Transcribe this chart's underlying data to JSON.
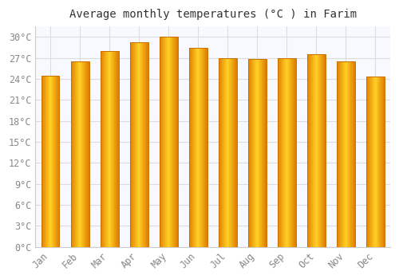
{
  "title": "Average monthly temperatures (°C ) in Farim",
  "months": [
    "Jan",
    "Feb",
    "Mar",
    "Apr",
    "May",
    "Jun",
    "Jul",
    "Aug",
    "Sep",
    "Oct",
    "Nov",
    "Dec"
  ],
  "values": [
    24.5,
    26.5,
    28.0,
    29.2,
    30.0,
    28.5,
    27.0,
    26.9,
    27.0,
    27.5,
    26.5,
    24.3
  ],
  "bar_color_left": "#F5A623",
  "bar_color_center": "#FFD040",
  "bar_color_right": "#E07800",
  "bar_edge_color": "#C87000",
  "ylim": [
    0,
    31.5
  ],
  "ytick_values": [
    0,
    3,
    6,
    9,
    12,
    15,
    18,
    21,
    24,
    27,
    30
  ],
  "background_color": "#ffffff",
  "plot_bg_color": "#f8f8ff",
  "grid_color": "#dddddd",
  "title_fontsize": 10,
  "tick_fontsize": 8.5,
  "tick_color": "#888888",
  "font_family": "monospace",
  "bar_width": 0.62
}
